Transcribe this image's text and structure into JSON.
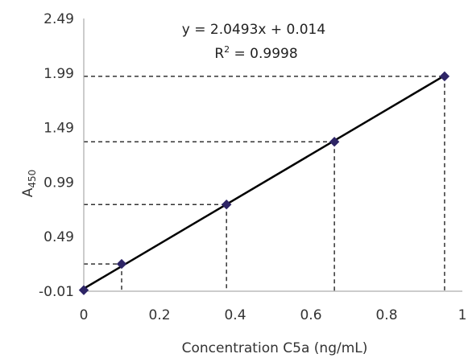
{
  "chart_data": {
    "type": "scatter",
    "xlabel": "Concentration C5a (ng/mL)",
    "ylabel": "A",
    "ylabel_sub": "450",
    "xlim": [
      0,
      1
    ],
    "ylim": [
      -0.01,
      2.49
    ],
    "x_ticks": [
      "0",
      "0.2",
      "0.4",
      "0.6",
      "0.8",
      "1"
    ],
    "x_tick_values": [
      0,
      0.2,
      0.4,
      0.6,
      0.8,
      1
    ],
    "y_ticks": [
      "-0.01",
      "0.49",
      "0.99",
      "1.49",
      "1.99",
      "2.49"
    ],
    "y_tick_values": [
      -0.01,
      0.49,
      0.99,
      1.49,
      1.99,
      2.49
    ],
    "series": [
      {
        "points": [
          {
            "x": 0,
            "y": 0
          },
          {
            "x": 0.1,
            "y": 0.24
          },
          {
            "x": 0.377,
            "y": 0.785
          },
          {
            "x": 0.662,
            "y": 1.36
          },
          {
            "x": 0.953,
            "y": 1.96
          }
        ]
      }
    ],
    "trendline": {
      "slope": 2.0493,
      "intercept": 0.014,
      "x_range": [
        0,
        0.953
      ]
    },
    "equation": "y = 2.0493x + 0.014",
    "r2_prefix": "R",
    "r2_sup": "2",
    "r2_value": " = 0.9998",
    "guide_lines": true,
    "grid": false,
    "colors": {
      "line": "#000000",
      "marker": "#2e2566",
      "guides": "#333333",
      "axis": "#999999"
    }
  }
}
